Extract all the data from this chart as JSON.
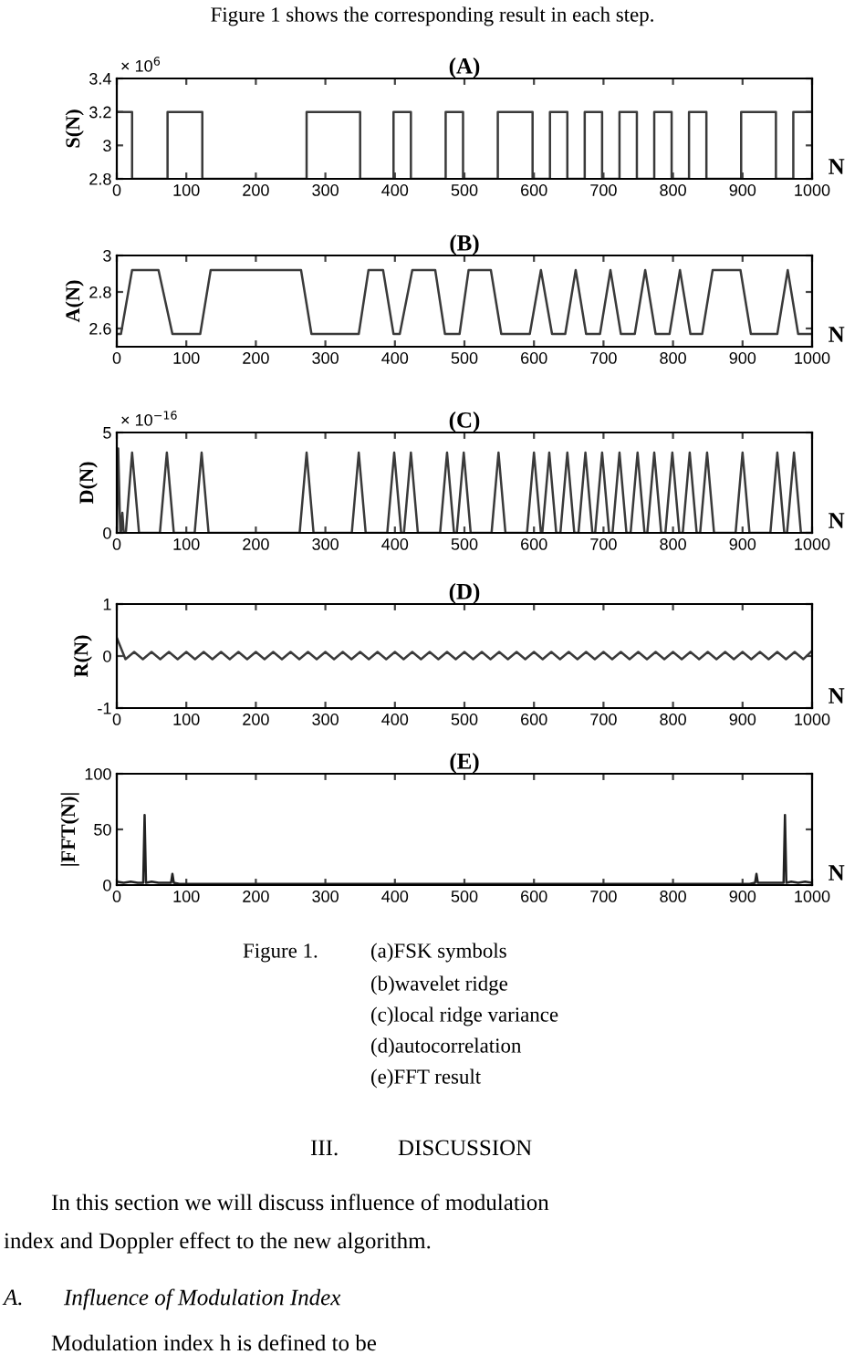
{
  "chart_data": [
    {
      "type": "line",
      "title": "(A)",
      "ylabel": "S(N)",
      "xlabel": "N",
      "xlim": [
        0,
        1000
      ],
      "xticks": [
        0,
        100,
        200,
        300,
        400,
        500,
        600,
        700,
        800,
        900,
        1000
      ],
      "ylim": [
        2.8,
        3.4
      ],
      "yticks": [
        2.8,
        3,
        3.2,
        3.4
      ],
      "grid": false,
      "annotations": [
        "× 10$^{6}$",
        "Figure 1 shows the corresponding result in each step."
      ],
      "series": [
        {
          "color": "#3a3a3a",
          "x": [
            0,
            22,
            22,
            73,
            73,
            123,
            123,
            273,
            273,
            350,
            350,
            398,
            398,
            423,
            423,
            473,
            473,
            498,
            498,
            548,
            548,
            598,
            598,
            623,
            623,
            648,
            648,
            673,
            673,
            698,
            698,
            723,
            723,
            748,
            748,
            773,
            773,
            798,
            798,
            823,
            823,
            848,
            848,
            898,
            898,
            948,
            948,
            973,
            973,
            1000
          ],
          "values": [
            3.2,
            3.2,
            2.8,
            2.8,
            3.2,
            3.2,
            2.8,
            2.8,
            3.2,
            3.2,
            2.8,
            2.8,
            3.2,
            3.2,
            2.8,
            2.8,
            3.2,
            3.2,
            2.8,
            2.8,
            3.2,
            3.2,
            2.8,
            2.8,
            3.2,
            3.2,
            2.8,
            2.8,
            3.2,
            3.2,
            2.8,
            2.8,
            3.2,
            3.2,
            2.8,
            2.8,
            3.2,
            3.2,
            2.8,
            2.8,
            3.2,
            3.2,
            2.8,
            2.8,
            3.2,
            3.2,
            2.8,
            2.8,
            3.2,
            3.2
          ]
        }
      ]
    },
    {
      "type": "line",
      "title": "(B)",
      "ylabel": "A(N)",
      "xlabel": "N",
      "xlim": [
        0,
        1000
      ],
      "xticks": [
        0,
        100,
        200,
        300,
        400,
        500,
        600,
        700,
        800,
        900,
        1000
      ],
      "ylim": [
        2.5,
        3
      ],
      "yticks": [
        2.6,
        2.8,
        3
      ],
      "grid": false,
      "series": [
        {
          "color": "#3a3a3a",
          "x": [
            0,
            6,
            22,
            60,
            80,
            120,
            135,
            265,
            280,
            348,
            362,
            383,
            398,
            407,
            425,
            458,
            472,
            493,
            506,
            538,
            553,
            594,
            610,
            626,
            645,
            660,
            675,
            695,
            710,
            725,
            745,
            760,
            775,
            795,
            810,
            825,
            842,
            857,
            897,
            912,
            950,
            965,
            980,
            1000
          ],
          "values": [
            2.57,
            2.57,
            2.92,
            2.92,
            2.57,
            2.57,
            2.92,
            2.92,
            2.57,
            2.57,
            2.92,
            2.92,
            2.57,
            2.57,
            2.92,
            2.92,
            2.57,
            2.57,
            2.92,
            2.92,
            2.57,
            2.57,
            2.92,
            2.57,
            2.57,
            2.92,
            2.57,
            2.57,
            2.92,
            2.57,
            2.57,
            2.92,
            2.57,
            2.57,
            2.92,
            2.57,
            2.57,
            2.92,
            2.92,
            2.57,
            2.57,
            2.92,
            2.57,
            2.57
          ]
        }
      ]
    },
    {
      "type": "line",
      "title": "(C)",
      "ylabel": "D(N)",
      "xlabel": "N",
      "xlim": [
        0,
        1000
      ],
      "xticks": [
        0,
        100,
        200,
        300,
        400,
        500,
        600,
        700,
        800,
        900,
        1000
      ],
      "ylim": [
        0,
        5
      ],
      "yticks": [
        0,
        5
      ],
      "grid": false,
      "annotations": [
        "× 10$^{−16}$"
      ],
      "series": [
        {
          "color": "#3a3a3a",
          "x": [
            0,
            2,
            5,
            6,
            8,
            10,
            13,
            22,
            32,
            62,
            72,
            82,
            112,
            122,
            132,
            263,
            273,
            283,
            338,
            348,
            358,
            389,
            399,
            409,
            413,
            423,
            433,
            465,
            475,
            485,
            489,
            499,
            509,
            539,
            549,
            559,
            590,
            600,
            610,
            612,
            622,
            632,
            638,
            648,
            658,
            664,
            674,
            684,
            688,
            698,
            708,
            713,
            723,
            733,
            739,
            749,
            759,
            763,
            773,
            783,
            789,
            799,
            809,
            814,
            824,
            834,
            839,
            849,
            859,
            890,
            900,
            910,
            940,
            950,
            960,
            964,
            974,
            984,
            1000
          ],
          "values": [
            0,
            4.2,
            0,
            0,
            1,
            0,
            0,
            4,
            0,
            0,
            4,
            0,
            0,
            4,
            0,
            0,
            4,
            0,
            0,
            4,
            0,
            0,
            4,
            0,
            0,
            4,
            0,
            0,
            4,
            0,
            0,
            4,
            0,
            0,
            4,
            0,
            0,
            4,
            0,
            0,
            4,
            0,
            0,
            4,
            0,
            0,
            4,
            0,
            0,
            4,
            0,
            0,
            4,
            0,
            0,
            4,
            0,
            0,
            4,
            0,
            0,
            4,
            0,
            0,
            4,
            0,
            0,
            4,
            0,
            0,
            4,
            0,
            0,
            4,
            0,
            0,
            4,
            0,
            0
          ]
        }
      ]
    },
    {
      "type": "line",
      "title": "(D)",
      "ylabel": "R(N)",
      "xlabel": "N",
      "xlim": [
        0,
        1000
      ],
      "xticks": [
        0,
        100,
        200,
        300,
        400,
        500,
        600,
        700,
        800,
        900,
        1000
      ],
      "ylim": [
        -1,
        1
      ],
      "yticks": [
        -1,
        0,
        1
      ],
      "grid": false,
      "series": [
        {
          "color": "#3a3a3a",
          "x": [
            0,
            12.5,
            25,
            37.5,
            50,
            62.5,
            75,
            87.5,
            100,
            112.5,
            125,
            137.5,
            150,
            162.5,
            175,
            187.5,
            200,
            212.5,
            225,
            237.5,
            250,
            262.5,
            275,
            287.5,
            300,
            312.5,
            325,
            337.5,
            350,
            362.5,
            375,
            387.5,
            400,
            412.5,
            425,
            437.5,
            450,
            462.5,
            475,
            487.5,
            500,
            512.5,
            525,
            537.5,
            550,
            562.5,
            575,
            587.5,
            600,
            612.5,
            625,
            637.5,
            650,
            662.5,
            675,
            687.5,
            700,
            712.5,
            725,
            737.5,
            750,
            762.5,
            775,
            787.5,
            800,
            812.5,
            825,
            837.5,
            850,
            862.5,
            875,
            887.5,
            900,
            912.5,
            925,
            937.5,
            950,
            962.5,
            975,
            987.5,
            1000
          ],
          "values": [
            0.35,
            -0.06,
            0.08,
            -0.06,
            0.08,
            -0.06,
            0.08,
            -0.06,
            0.08,
            -0.06,
            0.08,
            -0.06,
            0.08,
            -0.06,
            0.08,
            -0.06,
            0.08,
            -0.06,
            0.08,
            -0.06,
            0.08,
            -0.06,
            0.08,
            -0.06,
            0.08,
            -0.06,
            0.08,
            -0.06,
            0.08,
            -0.06,
            0.08,
            -0.06,
            0.08,
            -0.06,
            0.08,
            -0.06,
            0.08,
            -0.06,
            0.08,
            -0.06,
            0.08,
            -0.06,
            0.08,
            -0.06,
            0.08,
            -0.06,
            0.08,
            -0.06,
            0.08,
            -0.06,
            0.08,
            -0.06,
            0.08,
            -0.06,
            0.08,
            -0.06,
            0.08,
            -0.06,
            0.08,
            -0.06,
            0.08,
            -0.06,
            0.08,
            -0.06,
            0.08,
            -0.06,
            0.08,
            -0.06,
            0.08,
            -0.06,
            0.08,
            -0.06,
            0.08,
            -0.06,
            0.08,
            -0.06,
            0.08,
            -0.06,
            0.08,
            -0.06,
            0.1
          ]
        }
      ]
    },
    {
      "type": "line",
      "title": "(E)",
      "ylabel": "|FFT(N)|",
      "xlabel": "N",
      "xlim": [
        0,
        1000
      ],
      "xticks": [
        0,
        100,
        200,
        300,
        400,
        500,
        600,
        700,
        800,
        900,
        1000
      ],
      "ylim": [
        0,
        100
      ],
      "yticks": [
        0,
        50,
        100
      ],
      "grid": false,
      "annotations": [
        "Figure 1.",
        "(a)FSK symbols",
        "(b)wavelet ridge",
        "(c)local ridge variance",
        "(d)autocorrelation",
        "(e)FFT result",
        "III.",
        "DISCUSSION",
        "In this section we will discuss influence of modulation",
        "index and Doppler effect to the new algorithm.",
        "A.",
        "Influence of Modulation Index",
        "Modulation index h is defined to be"
      ],
      "series": [
        {
          "color": "#222222",
          "x": [
            0,
            10,
            20,
            30,
            38,
            40,
            42,
            50,
            60,
            70,
            78,
            80,
            82,
            90,
            100,
            900,
            910,
            918,
            920,
            922,
            930,
            950,
            959,
            961,
            963,
            970,
            980,
            990,
            1000
          ],
          "values": [
            3,
            2,
            3,
            2,
            2,
            63,
            2,
            3,
            2,
            2,
            2,
            10,
            2,
            1,
            1,
            1,
            1,
            2,
            10,
            2,
            2,
            2,
            2,
            63,
            2,
            3,
            2,
            3,
            2
          ]
        }
      ]
    }
  ]
}
